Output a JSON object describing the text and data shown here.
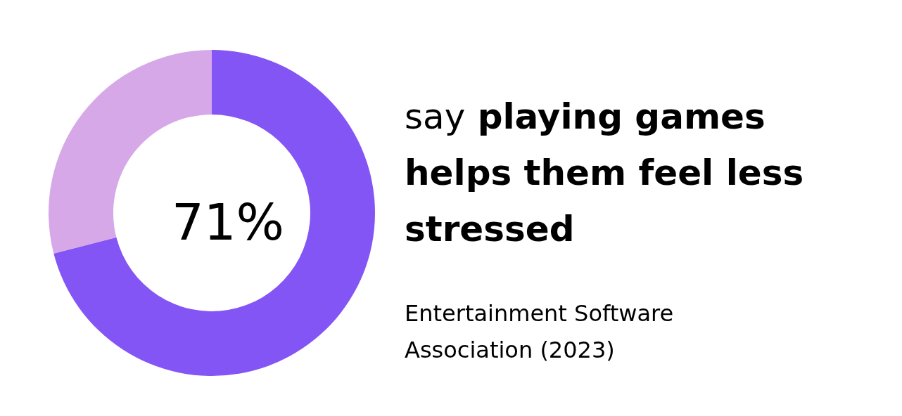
{
  "chart_data": {
    "type": "donut",
    "title": "say playing games helps them feel less stressed",
    "categories": [
      null,
      null
    ],
    "values": [
      71,
      29
    ],
    "colors": [
      "#8455f5",
      "#d6a8e8"
    ],
    "value_labels": [
      "71%",
      null
    ],
    "annotations": [
      "Entertainment Software Association (2023)"
    ],
    "legend": false
  }
}
